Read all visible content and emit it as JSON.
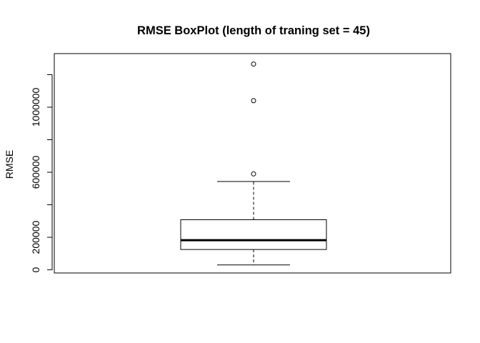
{
  "chart_data": {
    "type": "boxplot",
    "title": "RMSE BoxPlot (length of traning set = 45)",
    "ylabel": "RMSE",
    "xlabel": "",
    "ylim": [
      0,
      1300000
    ],
    "y_ticks": [
      0,
      200000,
      400000,
      600000,
      800000,
      1000000,
      1200000
    ],
    "y_tick_labels": [
      "0",
      "200000",
      "",
      "600000",
      "",
      "1000000",
      ""
    ],
    "boxes": [
      {
        "whisker_low": 30000,
        "q1": 125000,
        "median": 182000,
        "q3": 308000,
        "whisker_high": 543000,
        "outliers": [
          590000,
          1040000,
          1265000
        ]
      }
    ]
  }
}
